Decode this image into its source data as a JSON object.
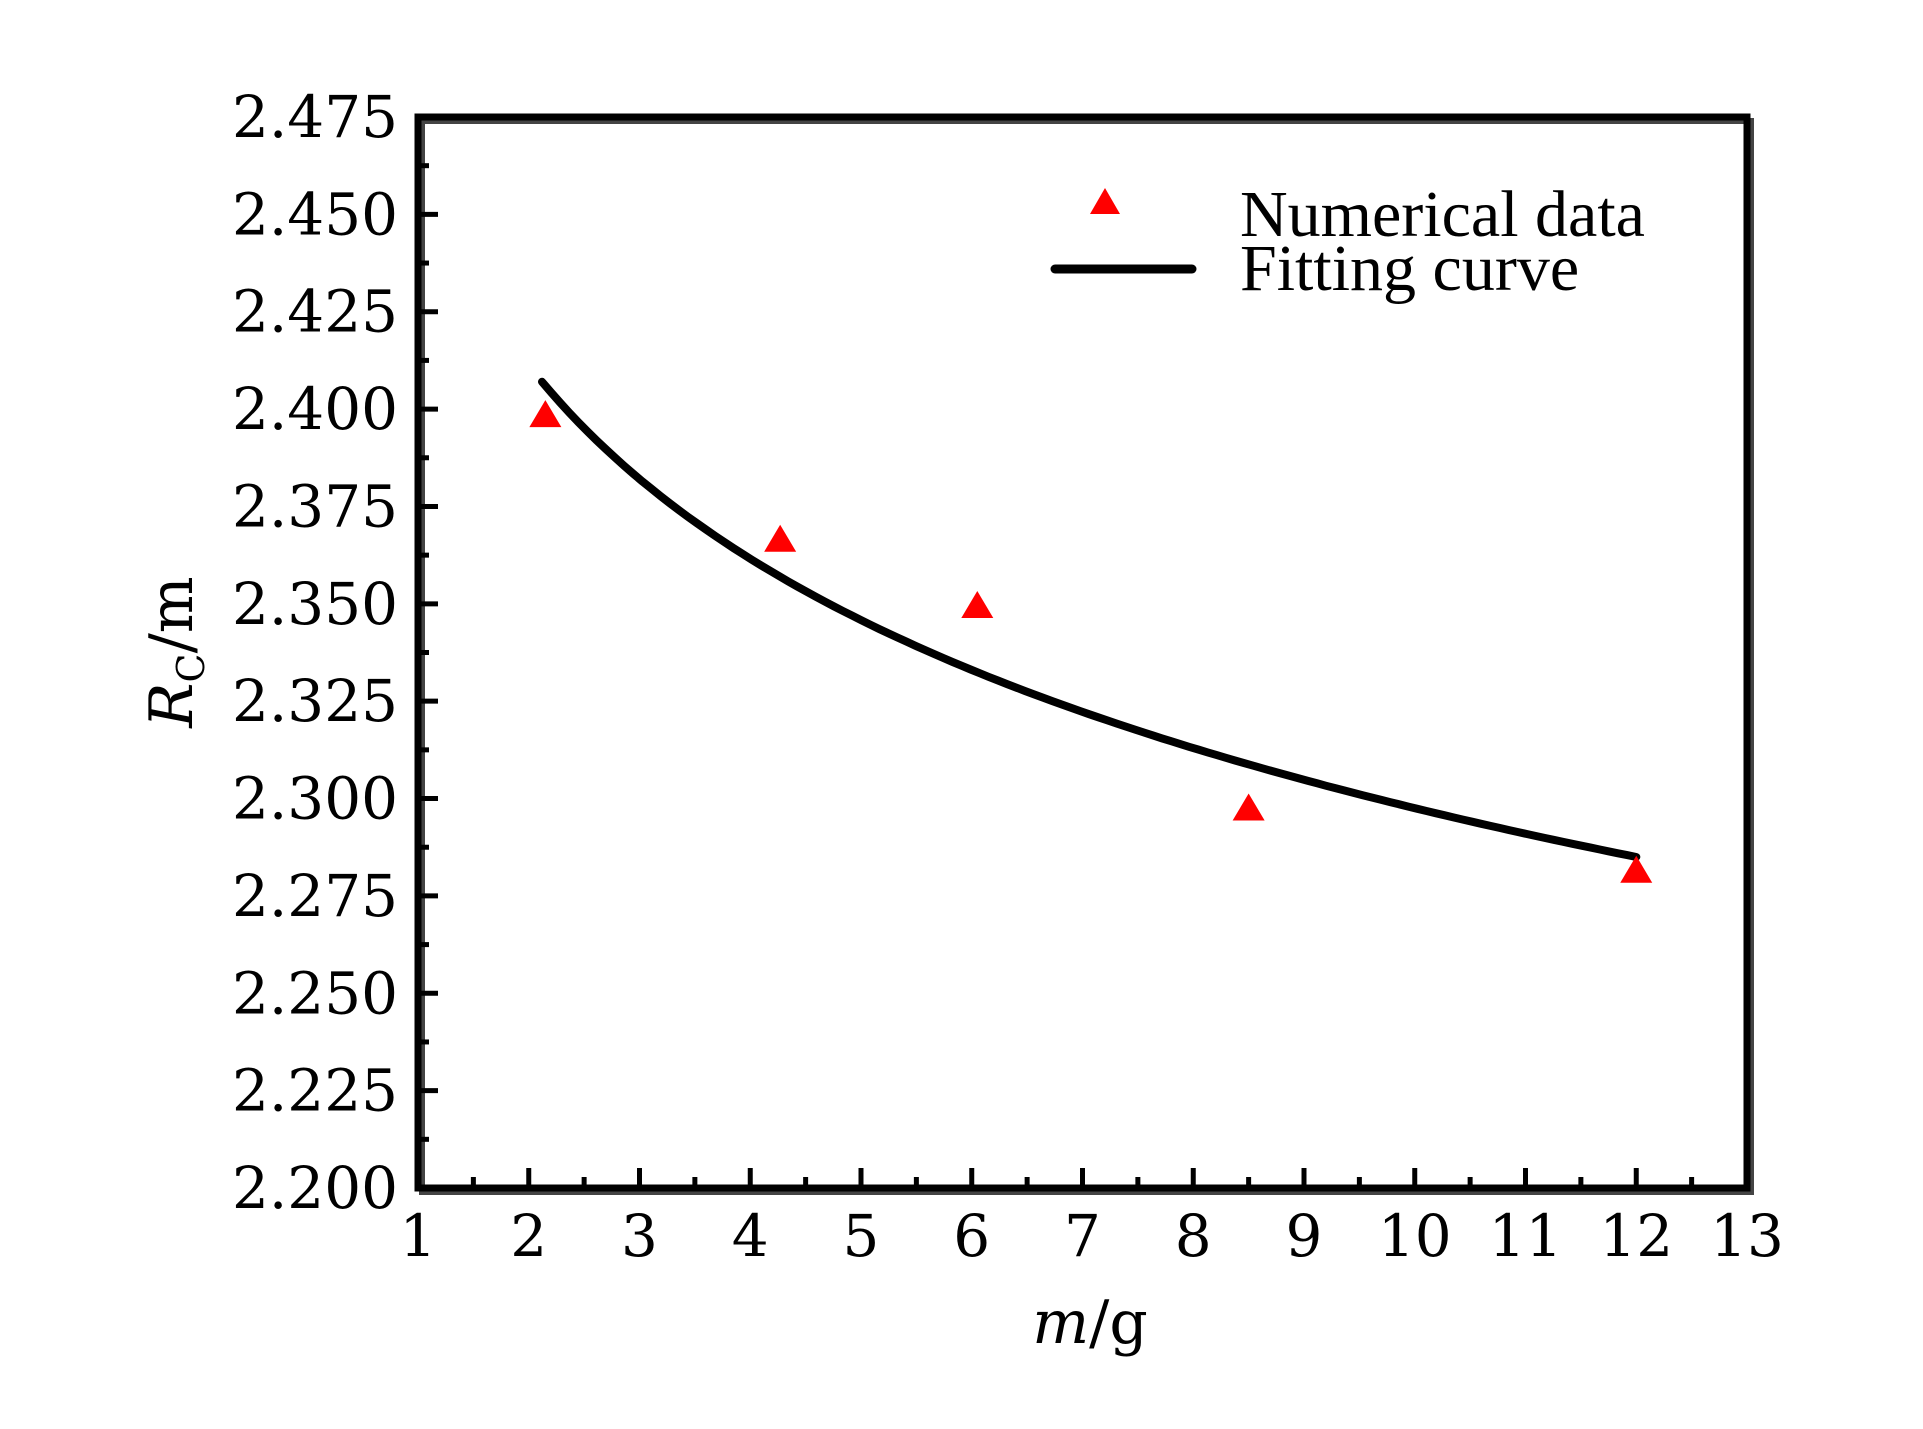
{
  "chart_data": {
    "type": "scatter",
    "title": "",
    "xlabel": "m/g",
    "xlabel_parts": {
      "var": "m",
      "unit": "/g"
    },
    "ylabel": "R_C/m",
    "ylabel_parts": {
      "var": "R",
      "sub": "C",
      "unit": "/m"
    },
    "xlim": [
      1,
      13
    ],
    "ylim": [
      2.2,
      2.475
    ],
    "x_ticks": [
      1,
      2,
      3,
      4,
      5,
      6,
      7,
      8,
      9,
      10,
      11,
      12,
      13
    ],
    "x_tick_labels": [
      "1",
      "2",
      "3",
      "4",
      "5",
      "6",
      "7",
      "8",
      "9",
      "10",
      "11",
      "12",
      "13"
    ],
    "y_ticks": [
      2.2,
      2.225,
      2.25,
      2.275,
      2.3,
      2.325,
      2.35,
      2.375,
      2.4,
      2.425,
      2.45,
      2.475
    ],
    "y_tick_labels": [
      "2.200",
      "2.225",
      "2.250",
      "2.275",
      "2.300",
      "2.325",
      "2.350",
      "2.375",
      "2.400",
      "2.425",
      "2.450",
      "2.475"
    ],
    "grid": false,
    "legend_position": "top-right",
    "series": [
      {
        "name": "Numerical data",
        "kind": "scatter",
        "marker": "triangle",
        "color": "#ff0000",
        "x": [
          2.15,
          4.27,
          6.05,
          8.5,
          12.0
        ],
        "y": [
          2.398,
          2.366,
          2.349,
          2.297,
          2.281
        ]
      },
      {
        "name": "Fitting curve",
        "kind": "line",
        "color": "#000000",
        "x": [
          2.12,
          3,
          4,
          5,
          6,
          7,
          8,
          9,
          10,
          11,
          12
        ],
        "y": [
          2.407,
          2.381,
          2.36,
          2.345,
          2.332,
          2.322,
          2.313,
          2.305,
          2.297,
          2.291,
          2.285
        ]
      }
    ]
  }
}
